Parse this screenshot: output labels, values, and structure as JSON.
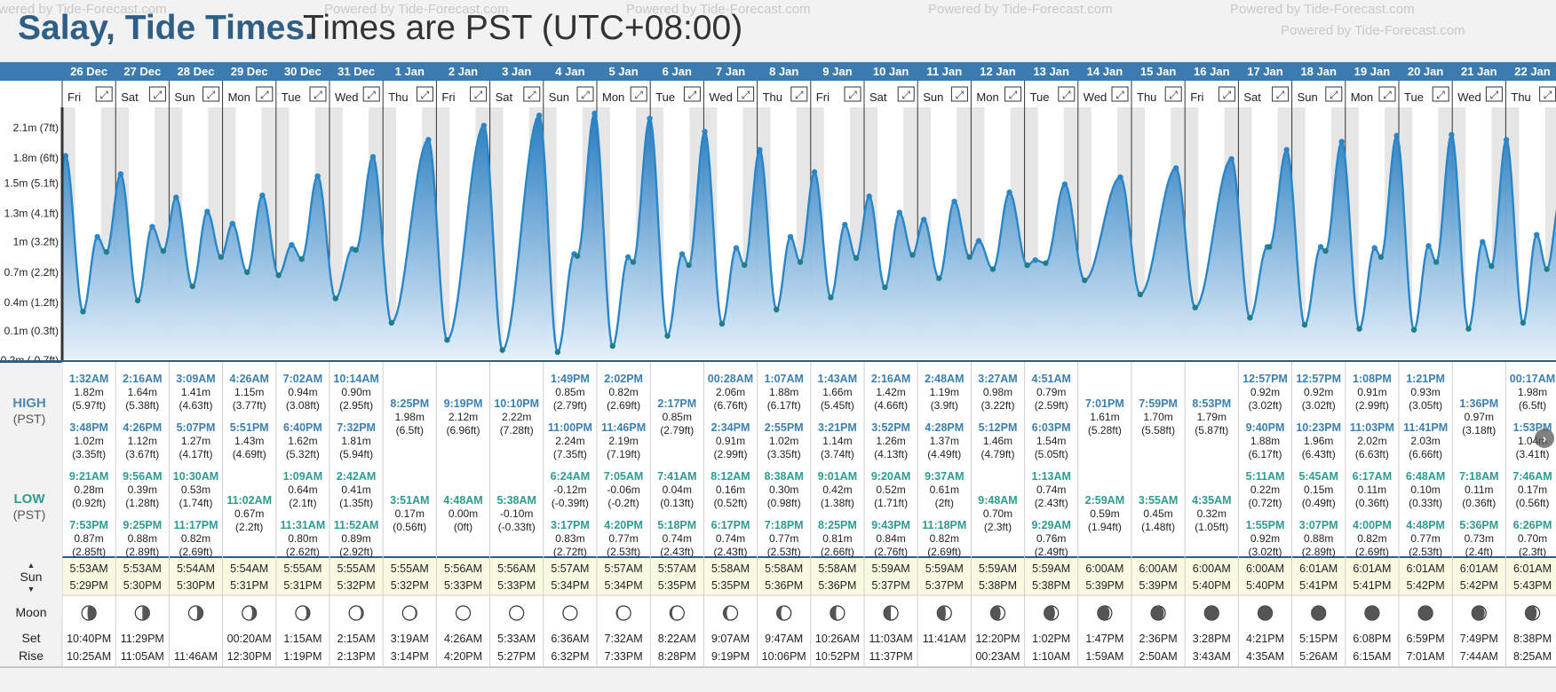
{
  "title": {
    "main": "Salay, Tide Times.",
    "sub": "Times are PST (UTC+08:00)"
  },
  "watermark": {
    "text": "Powered by Tide-Forecast.com"
  },
  "labels": {
    "high": "HIGH",
    "low": "LOW",
    "tz": "(PST)",
    "sun": "Sun",
    "moon": "Moon",
    "set": "Set",
    "rise": "Rise"
  },
  "colors": {
    "header_blue": "#3b7bb0",
    "tide_line": "#2a86c6",
    "high_text": "#3b80b0",
    "low_text": "#2e9b92",
    "sun_row": "#fcf9e3"
  },
  "chart_data": {
    "type": "area",
    "title": "Salay, Tide Times.",
    "ylabel": "",
    "ylim": [
      -0.2,
      2.3
    ],
    "yticks": [
      {
        "m": 2.1,
        "label": "2.1m (7ft)"
      },
      {
        "m": 1.8,
        "label": "1.8m (6ft)"
      },
      {
        "m": 1.55,
        "label": "1.5m (5.1ft)"
      },
      {
        "m": 1.25,
        "label": "1.3m (4.1ft)"
      },
      {
        "m": 0.97,
        "label": "1m (3.2ft)"
      },
      {
        "m": 0.67,
        "label": "0.7m (2.2ft)"
      },
      {
        "m": 0.37,
        "label": "0.4m (1.2ft)"
      },
      {
        "m": 0.09,
        "label": "0.1m (0.3ft)"
      },
      {
        "m": -0.2,
        "label": "-0.2m (-0.7ft)"
      }
    ],
    "days": [
      {
        "date": "26 Dec",
        "dow": "Fri",
        "high": [
          [
            "1:32AM",
            "1.82m",
            "(5.97ft)"
          ],
          [
            "3:48PM",
            "1.02m",
            "(3.35ft)"
          ]
        ],
        "low": [
          [
            "9:21AM",
            "0.28m",
            "(0.92ft)"
          ],
          [
            "7:53PM",
            "0.87m",
            "(2.85ft)"
          ]
        ],
        "sunrise": "5:53AM",
        "sunset": "5:29PM",
        "moonset": "10:40PM",
        "moonrise": "10:25AM",
        "moon": 0.2
      },
      {
        "date": "27 Dec",
        "dow": "Sat",
        "high": [
          [
            "2:16AM",
            "1.64m",
            "(5.38ft)"
          ],
          [
            "4:26PM",
            "1.12m",
            "(3.67ft)"
          ]
        ],
        "low": [
          [
            "9:56AM",
            "0.39m",
            "(1.28ft)"
          ],
          [
            "9:25PM",
            "0.88m",
            "(2.89ft)"
          ]
        ],
        "sunrise": "5:53AM",
        "sunset": "5:30PM",
        "moonset": "11:29PM",
        "moonrise": "11:05AM",
        "moon": 0.25
      },
      {
        "date": "28 Dec",
        "dow": "Sun",
        "high": [
          [
            "3:09AM",
            "1.41m",
            "(4.63ft)"
          ],
          [
            "5:07PM",
            "1.27m",
            "(4.17ft)"
          ]
        ],
        "low": [
          [
            "10:30AM",
            "0.53m",
            "(1.74ft)"
          ],
          [
            "11:17PM",
            "0.82m",
            "(2.69ft)"
          ]
        ],
        "sunrise": "5:54AM",
        "sunset": "5:30PM",
        "moonset": "",
        "moonrise": "11:46AM",
        "moon": 0.3
      },
      {
        "date": "29 Dec",
        "dow": "Mon",
        "high": [
          [
            "4:26AM",
            "1.15m",
            "(3.77ft)"
          ],
          [
            "5:51PM",
            "1.43m",
            "(4.69ft)"
          ]
        ],
        "low": [
          [
            "",
            "",
            ""
          ],
          [
            "11:02AM",
            "0.67m",
            "(2.2ft)"
          ]
        ],
        "sunrise": "5:54AM",
        "sunset": "5:31PM",
        "moonset": "00:20AM",
        "moonrise": "12:30PM",
        "moon": 0.35
      },
      {
        "date": "30 Dec",
        "dow": "Tue",
        "high": [
          [
            "7:02AM",
            "0.94m",
            "(3.08ft)"
          ],
          [
            "6:40PM",
            "1.62m",
            "(5.32ft)"
          ]
        ],
        "low": [
          [
            "1:09AM",
            "0.64m",
            "(2.1ft)"
          ],
          [
            "11:31AM",
            "0.80m",
            "(2.62ft)"
          ]
        ],
        "sunrise": "5:55AM",
        "sunset": "5:31PM",
        "moonset": "1:15AM",
        "moonrise": "1:19PM",
        "moon": 0.38
      },
      {
        "date": "31 Dec",
        "dow": "Wed",
        "high": [
          [
            "10:14AM",
            "0.90m",
            "(2.95ft)"
          ],
          [
            "7:32PM",
            "1.81m",
            "(5.94ft)"
          ]
        ],
        "low": [
          [
            "2:42AM",
            "0.41m",
            "(1.35ft)"
          ],
          [
            "11:52AM",
            "0.89m",
            "(2.92ft)"
          ]
        ],
        "sunrise": "5:55AM",
        "sunset": "5:32PM",
        "moonset": "2:15AM",
        "moonrise": "2:13PM",
        "moon": 0.42
      },
      {
        "date": "1 Jan",
        "dow": "Thu",
        "high": [
          [
            "",
            "",
            " "
          ],
          [
            "8:25PM",
            "1.98m",
            "(6.5ft)"
          ]
        ],
        "low": [
          [
            "",
            "",
            ""
          ],
          [
            "3:51AM",
            "0.17m",
            "(0.56ft)"
          ]
        ],
        "sunrise": "5:55AM",
        "sunset": "5:32PM",
        "moonset": "3:19AM",
        "moonrise": "3:14PM",
        "moon": 0.45
      },
      {
        "date": "2 Jan",
        "dow": "Fri",
        "high": [
          [
            "",
            "",
            ""
          ],
          [
            "9:19PM",
            "2.12m",
            "(6.96ft)"
          ]
        ],
        "low": [
          [
            "",
            "",
            ""
          ],
          [
            "4:48AM",
            "0.00m",
            "(0ft)"
          ]
        ],
        "sunrise": "5:56AM",
        "sunset": "5:33PM",
        "moonset": "4:26AM",
        "moonrise": "4:20PM",
        "moon": 0.48
      },
      {
        "date": "3 Jan",
        "dow": "Sat",
        "high": [
          [
            "",
            "",
            ""
          ],
          [
            "10:10PM",
            "2.22m",
            "(7.28ft)"
          ]
        ],
        "low": [
          [
            "",
            "",
            ""
          ],
          [
            "5:38AM",
            "-0.10m",
            "(-0.33ft)"
          ]
        ],
        "sunrise": "5:56AM",
        "sunset": "5:33PM",
        "moonset": "5:33AM",
        "moonrise": "5:27PM",
        "moon": 0.5
      },
      {
        "date": "4 Jan",
        "dow": "Sun",
        "high": [
          [
            "1:49PM",
            "0.85m",
            "(2.79ft)"
          ],
          [
            "11:00PM",
            "2.24m",
            "(7.35ft)"
          ]
        ],
        "low": [
          [
            "6:24AM",
            "-0.12m",
            "(-0.39ft)"
          ],
          [
            "3:17PM",
            "0.83m",
            "(2.72ft)"
          ]
        ],
        "sunrise": "5:57AM",
        "sunset": "5:34PM",
        "moonset": "6:36AM",
        "moonrise": "6:32PM",
        "moon": 0.52
      },
      {
        "date": "5 Jan",
        "dow": "Mon",
        "high": [
          [
            "2:02PM",
            "0.82m",
            "(2.69ft)"
          ],
          [
            "11:46PM",
            "2.19m",
            "(7.19ft)"
          ]
        ],
        "low": [
          [
            "7:05AM",
            "-0.06m",
            "(-0.2ft)"
          ],
          [
            "4:20PM",
            "0.77m",
            "(2.53ft)"
          ]
        ],
        "sunrise": "5:57AM",
        "sunset": "5:34PM",
        "moonset": "7:32AM",
        "moonrise": "7:33PM",
        "moon": 0.55
      },
      {
        "date": "6 Jan",
        "dow": "Tue",
        "high": [
          [
            "",
            "",
            ""
          ],
          [
            "2:17PM",
            "0.85m",
            "(2.79ft)"
          ]
        ],
        "low": [
          [
            "7:41AM",
            "0.04m",
            "(0.13ft)"
          ],
          [
            "5:18PM",
            "0.74m",
            "(2.43ft)"
          ]
        ],
        "sunrise": "5:57AM",
        "sunset": "5:35PM",
        "moonset": "8:22AM",
        "moonrise": "8:28PM",
        "moon": 0.58
      },
      {
        "date": "7 Jan",
        "dow": "Wed",
        "high": [
          [
            "00:28AM",
            "2.06m",
            "(6.76ft)"
          ],
          [
            "2:34PM",
            "0.91m",
            "(2.99ft)"
          ]
        ],
        "low": [
          [
            "8:12AM",
            "0.16m",
            "(0.52ft)"
          ],
          [
            "6:17PM",
            "0.74m",
            "(2.43ft)"
          ]
        ],
        "sunrise": "5:58AM",
        "sunset": "5:35PM",
        "moonset": "9:07AM",
        "moonrise": "9:19PM",
        "moon": 0.62
      },
      {
        "date": "8 Jan",
        "dow": "Thu",
        "high": [
          [
            "1:07AM",
            "1.88m",
            "(6.17ft)"
          ],
          [
            "2:55PM",
            "1.02m",
            "(3.35ft)"
          ]
        ],
        "low": [
          [
            "8:38AM",
            "0.30m",
            "(0.98ft)"
          ],
          [
            "7:18PM",
            "0.77m",
            "(2.53ft)"
          ]
        ],
        "sunrise": "5:58AM",
        "sunset": "5:36PM",
        "moonset": "9:47AM",
        "moonrise": "10:06PM",
        "moon": 0.65
      },
      {
        "date": "9 Jan",
        "dow": "Fri",
        "high": [
          [
            "1:43AM",
            "1.66m",
            "(5.45ft)"
          ],
          [
            "3:21PM",
            "1.14m",
            "(3.74ft)"
          ]
        ],
        "low": [
          [
            "9:01AM",
            "0.42m",
            "(1.38ft)"
          ],
          [
            "8:25PM",
            "0.81m",
            "(2.66ft)"
          ]
        ],
        "sunrise": "5:58AM",
        "sunset": "5:36PM",
        "moonset": "10:26AM",
        "moonrise": "10:52PM",
        "moon": 0.7
      },
      {
        "date": "10 Jan",
        "dow": "Sat",
        "high": [
          [
            "2:16AM",
            "1.42m",
            "(4.66ft)"
          ],
          [
            "3:52PM",
            "1.26m",
            "(4.13ft)"
          ]
        ],
        "low": [
          [
            "9:20AM",
            "0.52m",
            "(1.71ft)"
          ],
          [
            "9:43PM",
            "0.84m",
            "(2.76ft)"
          ]
        ],
        "sunrise": "5:59AM",
        "sunset": "5:37PM",
        "moonset": "11:03AM",
        "moonrise": "11:37PM",
        "moon": 0.75
      },
      {
        "date": "11 Jan",
        "dow": "Sun",
        "high": [
          [
            "2:48AM",
            "1.19m",
            "(3.9ft)"
          ],
          [
            "4:28PM",
            "1.37m",
            "(4.49ft)"
          ]
        ],
        "low": [
          [
            "9:37AM",
            "0.61m",
            "(2ft)"
          ],
          [
            "11:18PM",
            "0.82m",
            "(2.69ft)"
          ]
        ],
        "sunrise": "5:59AM",
        "sunset": "5:37PM",
        "moonset": "11:41AM",
        "moonrise": "",
        "moon": 0.8
      },
      {
        "date": "12 Jan",
        "dow": "Mon",
        "high": [
          [
            "3:27AM",
            "0.98m",
            "(3.22ft)"
          ],
          [
            "5:12PM",
            "1.46m",
            "(4.79ft)"
          ]
        ],
        "low": [
          [
            "",
            "",
            ""
          ],
          [
            "9:48AM",
            "0.70m",
            "(2.3ft)"
          ]
        ],
        "sunrise": "5:59AM",
        "sunset": "5:38PM",
        "moonset": "12:20PM",
        "moonrise": "00:23AM",
        "moon": 0.85
      },
      {
        "date": "13 Jan",
        "dow": "Tue",
        "high": [
          [
            "4:51AM",
            "0.79m",
            "(2.59ft)"
          ],
          [
            "6:03PM",
            "1.54m",
            "(5.05ft)"
          ]
        ],
        "low": [
          [
            "1:13AM",
            "0.74m",
            "(2.43ft)"
          ],
          [
            "9:29AM",
            "0.76m",
            "(2.49ft)"
          ]
        ],
        "sunrise": "5:59AM",
        "sunset": "5:38PM",
        "moonset": "1:02PM",
        "moonrise": "1:10AM",
        "moon": 0.88
      },
      {
        "date": "14 Jan",
        "dow": "Wed",
        "high": [
          [
            "",
            "",
            ""
          ],
          [
            "7:01PM",
            "1.61m",
            "(5.28ft)"
          ]
        ],
        "low": [
          [
            "",
            "",
            ""
          ],
          [
            "2:59AM",
            "0.59m",
            "(1.94ft)"
          ]
        ],
        "sunrise": "6:00AM",
        "sunset": "5:39PM",
        "moonset": "1:47PM",
        "moonrise": "1:59AM",
        "moon": 0.92
      },
      {
        "date": "15 Jan",
        "dow": "Thu",
        "high": [
          [
            "",
            "",
            ""
          ],
          [
            "7:59PM",
            "1.70m",
            "(5.58ft)"
          ]
        ],
        "low": [
          [
            "",
            "",
            ""
          ],
          [
            "3:55AM",
            "0.45m",
            "(1.48ft)"
          ]
        ],
        "sunrise": "6:00AM",
        "sunset": "5:39PM",
        "moonset": "2:36PM",
        "moonrise": "2:50AM",
        "moon": 0.95
      },
      {
        "date": "16 Jan",
        "dow": "Fri",
        "high": [
          [
            "",
            "",
            ""
          ],
          [
            "8:53PM",
            "1.79m",
            "(5.87ft)"
          ]
        ],
        "low": [
          [
            "",
            "",
            ""
          ],
          [
            "4:35AM",
            "0.32m",
            "(1.05ft)"
          ]
        ],
        "sunrise": "6:00AM",
        "sunset": "5:40PM",
        "moonset": "3:28PM",
        "moonrise": "3:43AM",
        "moon": 1.0
      },
      {
        "date": "17 Jan",
        "dow": "Sat",
        "high": [
          [
            "12:57PM",
            "0.92m",
            "(3.02ft)"
          ],
          [
            "9:40PM",
            "1.88m",
            "(6.17ft)"
          ]
        ],
        "low": [
          [
            "5:11AM",
            "0.22m",
            "(0.72ft)"
          ],
          [
            "1:55PM",
            "0.92m",
            "(3.02ft)"
          ]
        ],
        "sunrise": "6:00AM",
        "sunset": "5:40PM",
        "moonset": "4:21PM",
        "moonrise": "4:35AM",
        "moon": 1.0
      },
      {
        "date": "18 Jan",
        "dow": "Sun",
        "high": [
          [
            "12:57PM",
            "0.92m",
            "(3.02ft)"
          ],
          [
            "10:23PM",
            "1.96m",
            "(6.43ft)"
          ]
        ],
        "low": [
          [
            "5:45AM",
            "0.15m",
            "(0.49ft)"
          ],
          [
            "3:07PM",
            "0.88m",
            "(2.89ft)"
          ]
        ],
        "sunrise": "6:01AM",
        "sunset": "5:41PM",
        "moonset": "5:15PM",
        "moonrise": "5:26AM",
        "moon": 1.0
      },
      {
        "date": "19 Jan",
        "dow": "Mon",
        "high": [
          [
            "1:08PM",
            "0.91m",
            "(2.99ft)"
          ],
          [
            "11:03PM",
            "2.02m",
            "(6.63ft)"
          ]
        ],
        "low": [
          [
            "6:17AM",
            "0.11m",
            "(0.36ft)"
          ],
          [
            "4:00PM",
            "0.82m",
            "(2.69ft)"
          ]
        ],
        "sunrise": "6:01AM",
        "sunset": "5:41PM",
        "moonset": "6:08PM",
        "moonrise": "6:15AM",
        "moon": 1.0
      },
      {
        "date": "20 Jan",
        "dow": "Tue",
        "high": [
          [
            "1:21PM",
            "0.93m",
            "(3.05ft)"
          ],
          [
            "11:41PM",
            "2.03m",
            "(6.66ft)"
          ]
        ],
        "low": [
          [
            "6:48AM",
            "0.10m",
            "(0.33ft)"
          ],
          [
            "4:48PM",
            "0.77m",
            "(2.53ft)"
          ]
        ],
        "sunrise": "6:01AM",
        "sunset": "5:42PM",
        "moonset": "6:59PM",
        "moonrise": "7:01AM",
        "moon": 1.0
      },
      {
        "date": "21 Jan",
        "dow": "Wed",
        "high": [
          [
            "",
            "",
            ""
          ],
          [
            "1:36PM",
            "0.97m",
            "(3.18ft)"
          ]
        ],
        "low": [
          [
            "7:18AM",
            "0.11m",
            "(0.36ft)"
          ],
          [
            "5:36PM",
            "0.73m",
            "(2.4ft)"
          ]
        ],
        "sunrise": "6:01AM",
        "sunset": "5:42PM",
        "moonset": "7:49PM",
        "moonrise": "7:44AM",
        "moon": 0.95
      },
      {
        "date": "22 Jan",
        "dow": "Thu",
        "high": [
          [
            "00:17AM",
            "1.98m",
            "(6.5ft)"
          ],
          [
            "1:53PM",
            "1.04m",
            "(3.41ft)"
          ]
        ],
        "low": [
          [
            "7:46AM",
            "0.17m",
            "(0.56ft)"
          ],
          [
            "6:26PM",
            "0.70m",
            "(2.3ft)"
          ]
        ],
        "sunrise": "6:01AM",
        "sunset": "5:43PM",
        "moonset": "8:38PM",
        "moonrise": "8:25AM",
        "moon": 0.9
      }
    ]
  }
}
